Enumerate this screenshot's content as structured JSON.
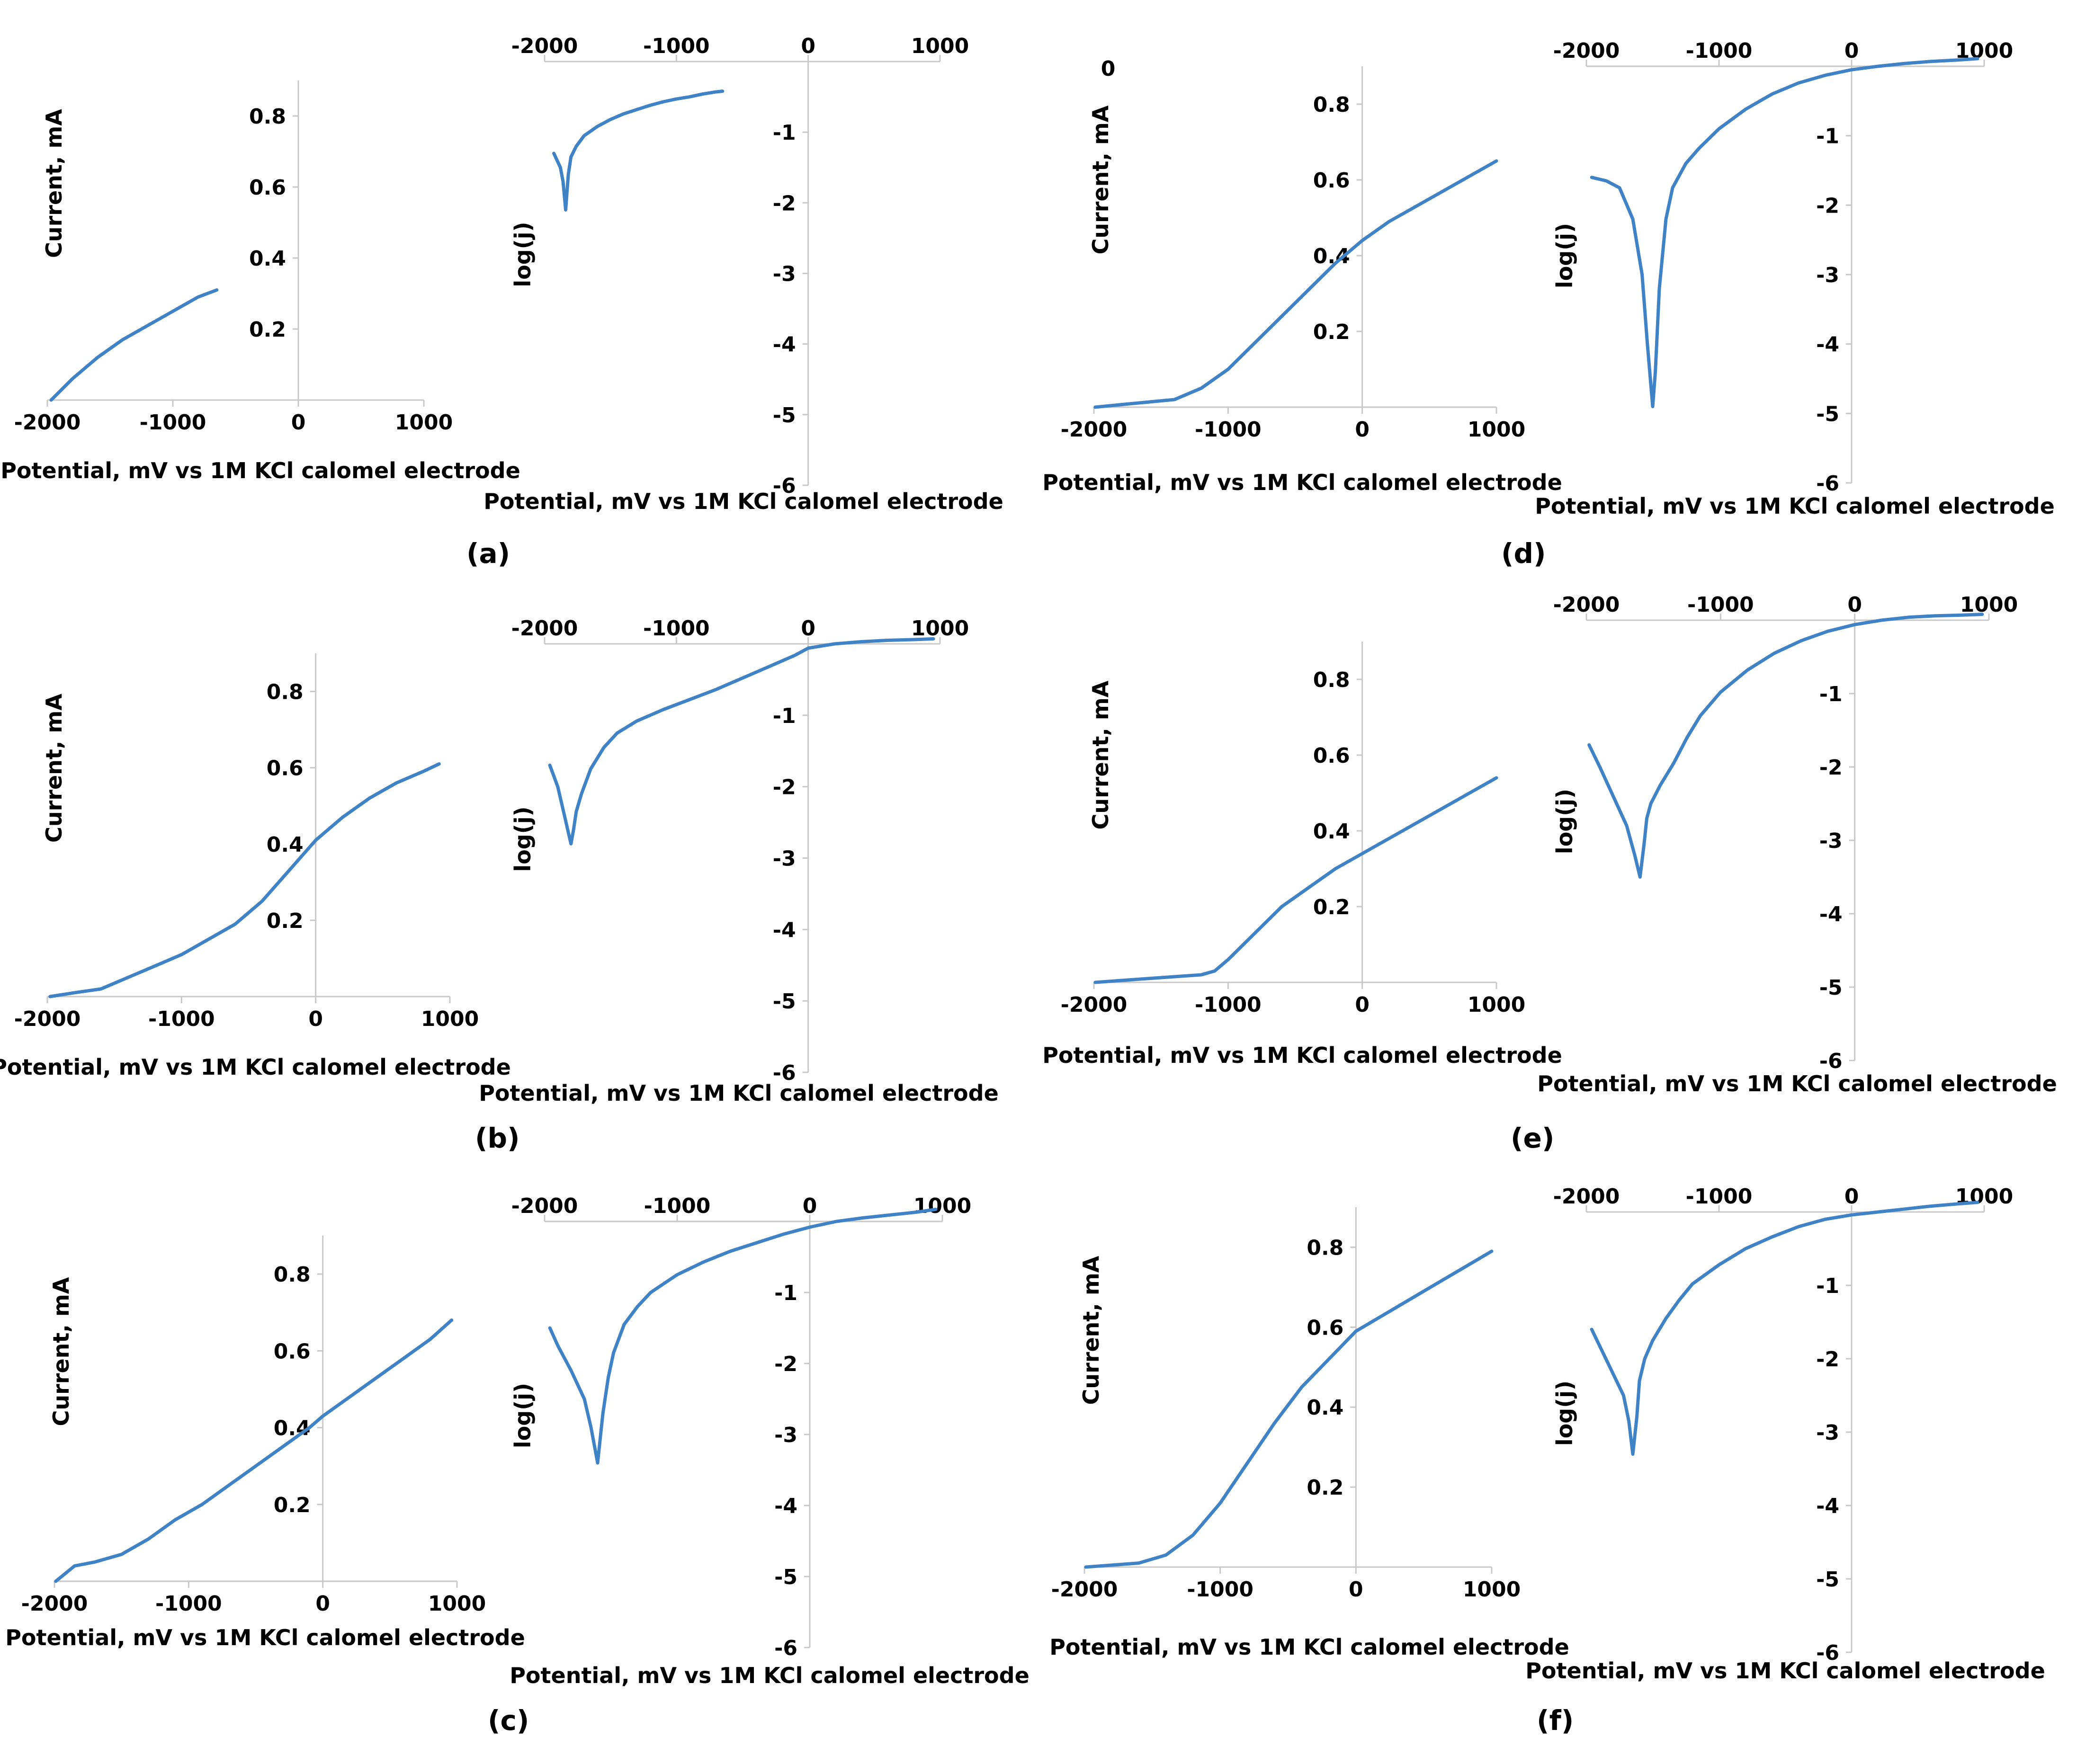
{
  "panel_labels": [
    "(a)",
    "(b)",
    "(c)",
    "(d)",
    "(e)",
    "(f)"
  ],
  "colors": {
    "curve": "#3f83c6",
    "axis": "#c8c8c8",
    "text": "#000000"
  },
  "chart_data": [
    {
      "panel": "(a)",
      "type": "line",
      "subtype": "linear",
      "xlabel": "Potential, mV vs 1M KCl calomel electrode",
      "ylabel": "Current, mA",
      "xlim": [
        -2000,
        1000
      ],
      "ylim": [
        0,
        0.9
      ],
      "xticks": [
        -2000,
        -1000,
        0,
        1000
      ],
      "yticks": [
        0.2,
        0.4,
        0.6,
        0.8
      ],
      "series": [
        {
          "x": [
            -1970,
            -1800,
            -1600,
            -1400,
            -1200,
            -1000,
            -800,
            -650
          ],
          "y": [
            0.0,
            0.06,
            0.12,
            0.17,
            0.21,
            0.25,
            0.29,
            0.31
          ]
        }
      ]
    },
    {
      "panel": "(a)",
      "type": "line",
      "subtype": "tafel",
      "xlabel": "Potential, mV vs 1M KCl calomel electrode",
      "ylabel": "log(j)",
      "xlim": [
        -2000,
        1000
      ],
      "ylim": [
        -6,
        0
      ],
      "xticks": [
        -2000,
        -1000,
        0,
        1000
      ],
      "yticks": [
        -1,
        -2,
        -3,
        -4,
        -5,
        -6
      ],
      "series": [
        {
          "x": [
            -1930,
            -1880,
            -1860,
            -1840,
            -1820,
            -1800,
            -1760,
            -1700,
            -1600,
            -1500,
            -1400,
            -1300,
            -1200,
            -1100,
            -1000,
            -900,
            -800,
            -700,
            -650
          ],
          "y": [
            -1.3,
            -1.5,
            -1.7,
            -2.1,
            -1.6,
            -1.35,
            -1.2,
            -1.05,
            -0.92,
            -0.82,
            -0.74,
            -0.68,
            -0.62,
            -0.57,
            -0.53,
            -0.5,
            -0.46,
            -0.43,
            -0.42
          ]
        }
      ]
    },
    {
      "panel": "(b)",
      "type": "line",
      "subtype": "linear",
      "xlabel": "Potential, mV vs 1M KCl calomel electrode",
      "ylabel": "Current, mA",
      "xlim": [
        -2000,
        1000
      ],
      "ylim": [
        0,
        0.9
      ],
      "xticks": [
        -2000,
        -1000,
        0,
        1000
      ],
      "yticks": [
        0.2,
        0.4,
        0.6,
        0.8
      ],
      "series": [
        {
          "x": [
            -1980,
            -1800,
            -1600,
            -1400,
            -1200,
            -1000,
            -800,
            -600,
            -400,
            -200,
            0,
            200,
            400,
            600,
            800,
            920
          ],
          "y": [
            0.0,
            0.01,
            0.02,
            0.05,
            0.08,
            0.11,
            0.15,
            0.19,
            0.25,
            0.33,
            0.41,
            0.47,
            0.52,
            0.56,
            0.59,
            0.61
          ]
        }
      ]
    },
    {
      "panel": "(b)",
      "type": "line",
      "subtype": "tafel",
      "xlabel": "Potential, mV vs 1M KCl calomel electrode",
      "ylabel": "log(j)",
      "xlim": [
        -2000,
        1000
      ],
      "ylim": [
        -6,
        0
      ],
      "xticks": [
        -2000,
        -1000,
        0,
        1000
      ],
      "yticks": [
        -1,
        -2,
        -3,
        -4,
        -5,
        -6
      ],
      "series": [
        {
          "x": [
            -1960,
            -1900,
            -1850,
            -1800,
            -1780,
            -1760,
            -1720,
            -1650,
            -1550,
            -1450,
            -1300,
            -1100,
            -900,
            -700,
            -500,
            -300,
            -100,
            0,
            200,
            400,
            600,
            800,
            950
          ],
          "y": [
            -1.7,
            -2.0,
            -2.4,
            -2.8,
            -2.6,
            -2.35,
            -2.1,
            -1.75,
            -1.45,
            -1.25,
            -1.08,
            -0.92,
            -0.78,
            -0.64,
            -0.48,
            -0.32,
            -0.16,
            -0.06,
            0.0,
            0.03,
            0.05,
            0.06,
            0.07
          ]
        }
      ]
    },
    {
      "panel": "(c)",
      "type": "line",
      "subtype": "linear",
      "xlabel": "Potential, mV vs 1M KCl calomel electrode",
      "ylabel": "Current, mA",
      "xlim": [
        -2000,
        1000
      ],
      "ylim": [
        0,
        0.9
      ],
      "xticks": [
        -2000,
        -1000,
        0,
        1000
      ],
      "yticks": [
        0.2,
        0.4,
        0.6,
        0.8
      ],
      "series": [
        {
          "x": [
            -1990,
            -1850,
            -1700,
            -1500,
            -1300,
            -1100,
            -900,
            -700,
            -500,
            -300,
            -100,
            0,
            200,
            400,
            600,
            800,
            960
          ],
          "y": [
            0.0,
            0.04,
            0.05,
            0.07,
            0.11,
            0.16,
            0.2,
            0.25,
            0.3,
            0.35,
            0.4,
            0.43,
            0.48,
            0.53,
            0.58,
            0.63,
            0.68
          ]
        }
      ]
    },
    {
      "panel": "(c)",
      "type": "line",
      "subtype": "tafel",
      "xlabel": "Potential, mV vs 1M KCl calomel electrode",
      "ylabel": "log(j)",
      "xlim": [
        -2000,
        1000
      ],
      "ylim": [
        -6,
        0
      ],
      "xticks": [
        -2000,
        -1000,
        0,
        1000
      ],
      "yticks": [
        -1,
        -2,
        -3,
        -4,
        -5,
        -6
      ],
      "series": [
        {
          "x": [
            -1960,
            -1900,
            -1800,
            -1700,
            -1650,
            -1600,
            -1560,
            -1520,
            -1480,
            -1400,
            -1300,
            -1200,
            -1000,
            -800,
            -600,
            -400,
            -200,
            0,
            200,
            400,
            600,
            800,
            950
          ],
          "y": [
            -1.5,
            -1.75,
            -2.1,
            -2.5,
            -2.9,
            -3.4,
            -2.7,
            -2.2,
            -1.85,
            -1.45,
            -1.2,
            -1.0,
            -0.75,
            -0.57,
            -0.42,
            -0.3,
            -0.18,
            -0.08,
            0.0,
            0.05,
            0.09,
            0.13,
            0.17
          ]
        }
      ]
    },
    {
      "panel": "(d)",
      "type": "line",
      "subtype": "linear",
      "xlabel": "Potential, mV vs 1M KCl calomel electrode",
      "ylabel": "Current, mA",
      "xlim": [
        -2000,
        1000
      ],
      "ylim": [
        0,
        0.9
      ],
      "xticks": [
        -2000,
        -1000,
        0,
        1000
      ],
      "yticks": [
        0.2,
        0.4,
        0.6,
        0.8
      ],
      "series": [
        {
          "x": [
            -1990,
            -1700,
            -1400,
            -1200,
            -1000,
            -800,
            -600,
            -400,
            -200,
            0,
            200,
            400,
            600,
            800,
            1000
          ],
          "y": [
            0.0,
            0.01,
            0.02,
            0.05,
            0.1,
            0.17,
            0.24,
            0.31,
            0.38,
            0.44,
            0.49,
            0.53,
            0.57,
            0.61,
            0.65
          ]
        }
      ]
    },
    {
      "panel": "(d)",
      "type": "line",
      "subtype": "tafel",
      "xlabel": "Potential, mV vs 1M KCl calomel electrode",
      "ylabel": "log(j)",
      "xlim": [
        -2000,
        1000
      ],
      "ylim": [
        -6,
        0
      ],
      "xticks": [
        -2000,
        -1000,
        0,
        1000
      ],
      "yticks": [
        -1,
        -2,
        -3,
        -4,
        -5,
        -6
      ],
      "series": [
        {
          "x": [
            -1960,
            -1850,
            -1750,
            -1650,
            -1580,
            -1540,
            -1500,
            -1480,
            -1450,
            -1400,
            -1350,
            -1250,
            -1150,
            -1000,
            -800,
            -600,
            -400,
            -200,
            0,
            200,
            400,
            600,
            800,
            950
          ],
          "y": [
            -1.6,
            -1.65,
            -1.75,
            -2.2,
            -3.0,
            -4.0,
            -4.9,
            -4.4,
            -3.2,
            -2.2,
            -1.75,
            -1.4,
            -1.18,
            -0.9,
            -0.62,
            -0.4,
            -0.24,
            -0.13,
            -0.05,
            0.0,
            0.04,
            0.07,
            0.09,
            0.11
          ]
        }
      ]
    },
    {
      "panel": "(e)",
      "type": "line",
      "subtype": "linear",
      "xlabel": "Potential, mV vs 1M KCl calomel electrode",
      "ylabel": "Current, mA",
      "xlim": [
        -2000,
        1000
      ],
      "ylim": [
        0,
        0.9
      ],
      "xticks": [
        -2000,
        -1000,
        0,
        1000
      ],
      "yticks": [
        0.2,
        0.4,
        0.6,
        0.8
      ],
      "series": [
        {
          "x": [
            -1990,
            -1600,
            -1200,
            -1100,
            -1000,
            -800,
            -600,
            -400,
            -200,
            0,
            200,
            400,
            600,
            800,
            1000
          ],
          "y": [
            0.0,
            0.01,
            0.02,
            0.03,
            0.06,
            0.13,
            0.2,
            0.25,
            0.3,
            0.34,
            0.38,
            0.42,
            0.46,
            0.5,
            0.54
          ]
        }
      ]
    },
    {
      "panel": "(e)",
      "type": "line",
      "subtype": "tafel",
      "xlabel": "Potential, mV vs 1M KCl calomel electrode",
      "ylabel": "log(j)",
      "xlim": [
        -2000,
        1000
      ],
      "ylim": [
        -6,
        0
      ],
      "xticks": [
        -2000,
        -1000,
        0,
        1000
      ],
      "yticks": [
        -1,
        -2,
        -3,
        -4,
        -5,
        -6
      ],
      "series": [
        {
          "x": [
            -1980,
            -1900,
            -1800,
            -1700,
            -1640,
            -1600,
            -1570,
            -1550,
            -1520,
            -1450,
            -1350,
            -1250,
            -1150,
            -1000,
            -800,
            -600,
            -400,
            -200,
            0,
            200,
            400,
            600,
            800,
            950
          ],
          "y": [
            -1.7,
            -2.0,
            -2.4,
            -2.8,
            -3.2,
            -3.5,
            -3.05,
            -2.7,
            -2.5,
            -2.25,
            -1.95,
            -1.6,
            -1.3,
            -0.98,
            -0.68,
            -0.45,
            -0.28,
            -0.15,
            -0.06,
            0.0,
            0.04,
            0.06,
            0.07,
            0.08
          ]
        }
      ]
    },
    {
      "panel": "(f)",
      "type": "line",
      "subtype": "linear",
      "xlabel": "Potential, mV vs 1M KCl calomel electrode",
      "ylabel": "Current, mA",
      "xlim": [
        -2000,
        1000
      ],
      "ylim": [
        0,
        0.9
      ],
      "xticks": [
        -2000,
        -1000,
        0,
        1000
      ],
      "yticks": [
        0.2,
        0.4,
        0.6,
        0.8
      ],
      "series": [
        {
          "x": [
            -1990,
            -1600,
            -1400,
            -1200,
            -1000,
            -800,
            -600,
            -400,
            -200,
            0,
            200,
            400,
            600,
            800,
            1000
          ],
          "y": [
            0.0,
            0.01,
            0.03,
            0.08,
            0.16,
            0.26,
            0.36,
            0.45,
            0.52,
            0.59,
            0.63,
            0.67,
            0.71,
            0.75,
            0.79
          ]
        }
      ]
    },
    {
      "panel": "(f)",
      "type": "line",
      "subtype": "tafel",
      "xlabel": "Potential, mV vs 1M KCl calomel electrode",
      "ylabel": "log(j)",
      "xlim": [
        -2000,
        1000
      ],
      "ylim": [
        -6,
        0
      ],
      "xticks": [
        -2000,
        -1000,
        0,
        1000
      ],
      "yticks": [
        -1,
        -2,
        -3,
        -4,
        -5,
        -6
      ],
      "series": [
        {
          "x": [
            -1960,
            -1880,
            -1800,
            -1720,
            -1680,
            -1650,
            -1620,
            -1600,
            -1560,
            -1500,
            -1400,
            -1300,
            -1200,
            -1000,
            -800,
            -600,
            -400,
            -200,
            0,
            200,
            400,
            600,
            800,
            950
          ],
          "y": [
            -1.6,
            -1.9,
            -2.2,
            -2.5,
            -2.85,
            -3.3,
            -2.8,
            -2.3,
            -2.0,
            -1.75,
            -1.45,
            -1.2,
            -0.98,
            -0.72,
            -0.5,
            -0.34,
            -0.2,
            -0.1,
            -0.04,
            0.0,
            0.04,
            0.08,
            0.11,
            0.13
          ]
        }
      ]
    }
  ]
}
